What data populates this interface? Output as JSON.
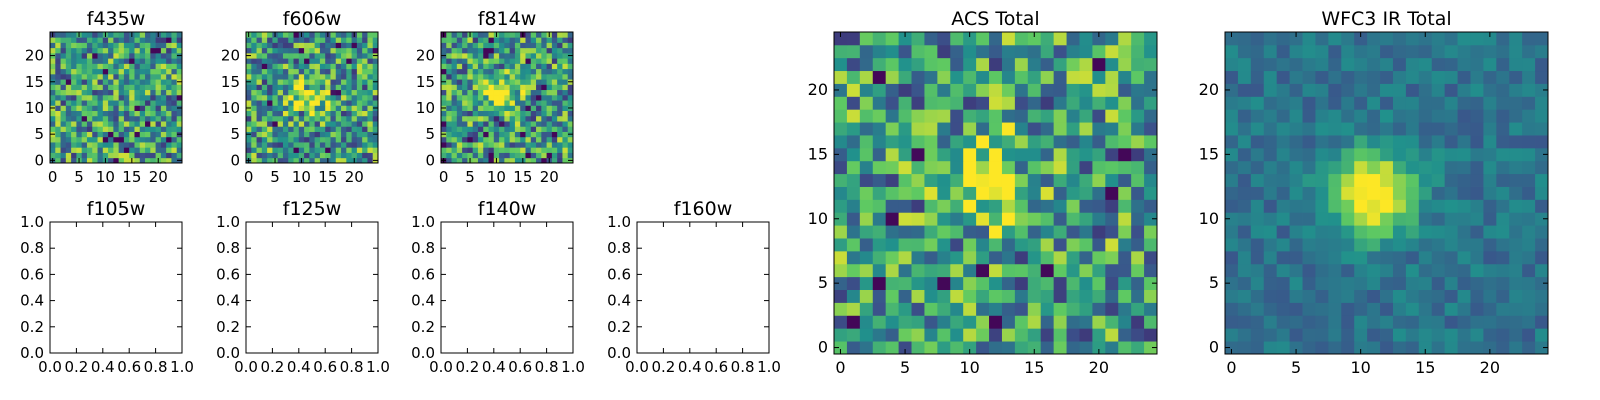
{
  "chart_data": [
    {
      "type": "heatmap",
      "title": "f435w",
      "xticks": [
        "0",
        "5",
        "10",
        "15",
        "20"
      ],
      "yticks": [
        "0",
        "5",
        "10",
        "15",
        "20"
      ],
      "xlim": [
        -0.5,
        24.5
      ],
      "ylim": [
        -0.5,
        24.5
      ],
      "grid_size": 25,
      "colormap": "viridis",
      "grid": false,
      "peak": null
    },
    {
      "type": "heatmap",
      "title": "f606w",
      "xticks": [
        "0",
        "5",
        "10",
        "15",
        "20"
      ],
      "yticks": [
        "0",
        "5",
        "10",
        "15",
        "20"
      ],
      "xlim": [
        -0.5,
        24.5
      ],
      "ylim": [
        -0.5,
        24.5
      ],
      "grid_size": 25,
      "colormap": "viridis",
      "grid": false,
      "peak": {
        "x": 11,
        "y": 12
      }
    },
    {
      "type": "heatmap",
      "title": "f814w",
      "xticks": [
        "0",
        "5",
        "10",
        "15",
        "20"
      ],
      "yticks": [
        "0",
        "5",
        "10",
        "15",
        "20"
      ],
      "xlim": [
        -0.5,
        24.5
      ],
      "ylim": [
        -0.5,
        24.5
      ],
      "grid_size": 25,
      "colormap": "viridis",
      "grid": false,
      "peak": {
        "x": 11,
        "y": 12
      }
    },
    {
      "type": "empty",
      "title": "f105w",
      "xticks": [
        "0.0",
        "0.2",
        "0.4",
        "0.6",
        "0.8",
        "1.0"
      ],
      "yticks": [
        "0.0",
        "0.2",
        "0.4",
        "0.6",
        "0.8",
        "1.0"
      ],
      "xlim": [
        0,
        1
      ],
      "ylim": [
        0,
        1
      ]
    },
    {
      "type": "empty",
      "title": "f125w",
      "xticks": [
        "0.0",
        "0.2",
        "0.4",
        "0.6",
        "0.8",
        "1.0"
      ],
      "yticks": [
        "0.0",
        "0.2",
        "0.4",
        "0.6",
        "0.8",
        "1.0"
      ],
      "xlim": [
        0,
        1
      ],
      "ylim": [
        0,
        1
      ]
    },
    {
      "type": "empty",
      "title": "f140w",
      "xticks": [
        "0.0",
        "0.2",
        "0.4",
        "0.6",
        "0.8",
        "1.0"
      ],
      "yticks": [
        "0.0",
        "0.2",
        "0.4",
        "0.6",
        "0.8",
        "1.0"
      ],
      "xlim": [
        0,
        1
      ],
      "ylim": [
        0,
        1
      ]
    },
    {
      "type": "empty",
      "title": "f160w",
      "xticks": [
        "0.0",
        "0.2",
        "0.4",
        "0.6",
        "0.8",
        "1.0"
      ],
      "yticks": [
        "0.0",
        "0.2",
        "0.4",
        "0.6",
        "0.8",
        "1.0"
      ],
      "xlim": [
        0,
        1
      ],
      "ylim": [
        0,
        1
      ]
    },
    {
      "type": "heatmap",
      "title": "ACS Total",
      "xticks": [
        "0",
        "5",
        "10",
        "15",
        "20"
      ],
      "yticks": [
        "0",
        "5",
        "10",
        "15",
        "20"
      ],
      "xlim": [
        -0.5,
        24.5
      ],
      "ylim": [
        -0.5,
        24.5
      ],
      "grid_size": 25,
      "colormap": "viridis",
      "grid": false,
      "peak": {
        "x": 12,
        "y": 13
      }
    },
    {
      "type": "heatmap",
      "title": "WFC3 IR Total",
      "xticks": [
        "0",
        "5",
        "10",
        "15",
        "20"
      ],
      "yticks": [
        "0",
        "5",
        "10",
        "15",
        "20"
      ],
      "xlim": [
        -0.5,
        24.5
      ],
      "ylim": [
        -0.5,
        24.5
      ],
      "grid_size": 25,
      "colormap": "viridis",
      "grid": false,
      "peak": {
        "x": 11,
        "y": 12
      }
    }
  ]
}
